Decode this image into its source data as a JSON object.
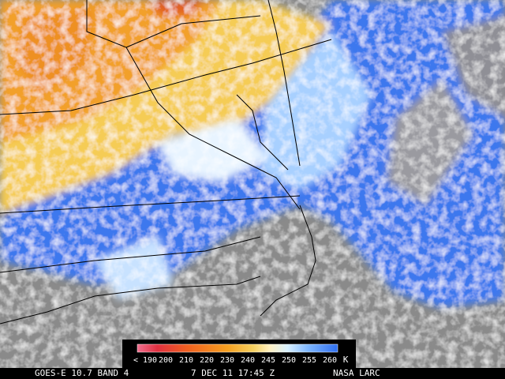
{
  "image": {
    "product": "GOES-E 10.7 BAND 4",
    "time": "7 DEC 11 17:45 Z",
    "source": "NASA LARC"
  },
  "colorbar": {
    "labels": [
      "< 190",
      "200",
      "210",
      "220",
      "230",
      "240",
      "245",
      "250",
      "255",
      "260"
    ],
    "unit": "K"
  }
}
